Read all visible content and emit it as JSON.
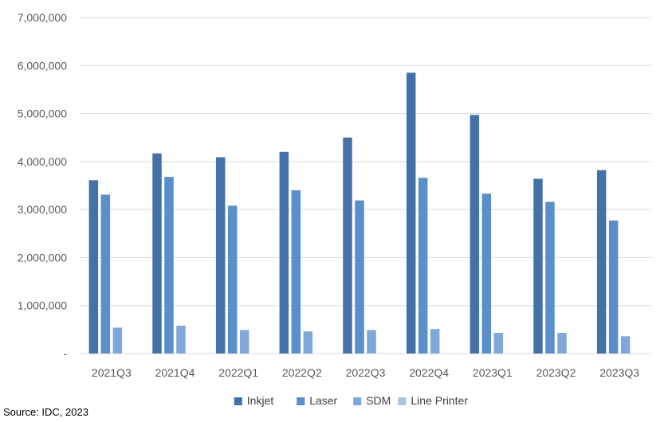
{
  "chart_data": {
    "type": "bar",
    "categories": [
      "2021Q3",
      "2021Q4",
      "2022Q1",
      "2022Q2",
      "2022Q3",
      "2022Q4",
      "2023Q1",
      "2023Q2",
      "2023Q3"
    ],
    "series": [
      {
        "name": "Inkjet",
        "color": "#4472a8",
        "values": [
          3610000,
          4170000,
          4090000,
          4200000,
          4500000,
          5850000,
          4970000,
          3640000,
          3820000
        ]
      },
      {
        "name": "Laser",
        "color": "#5b8fc9",
        "values": [
          3310000,
          3680000,
          3080000,
          3400000,
          3190000,
          3660000,
          3330000,
          3160000,
          2770000
        ]
      },
      {
        "name": "SDM",
        "color": "#7fa7d7",
        "values": [
          540000,
          580000,
          490000,
          460000,
          490000,
          510000,
          430000,
          430000,
          360000
        ]
      },
      {
        "name": "Line Printer",
        "color": "#a9c5e6",
        "values": [
          0,
          0,
          0,
          0,
          0,
          0,
          0,
          0,
          0
        ]
      }
    ],
    "y_ticks": [
      "-",
      "1,000,000",
      "2,000,000",
      "3,000,000",
      "4,000,000",
      "5,000,000",
      "6,000,000",
      "7,000,000"
    ],
    "ylim": [
      0,
      7000000
    ],
    "grid": true,
    "legend_position": "bottom",
    "source": "Source: IDC, 2023"
  }
}
